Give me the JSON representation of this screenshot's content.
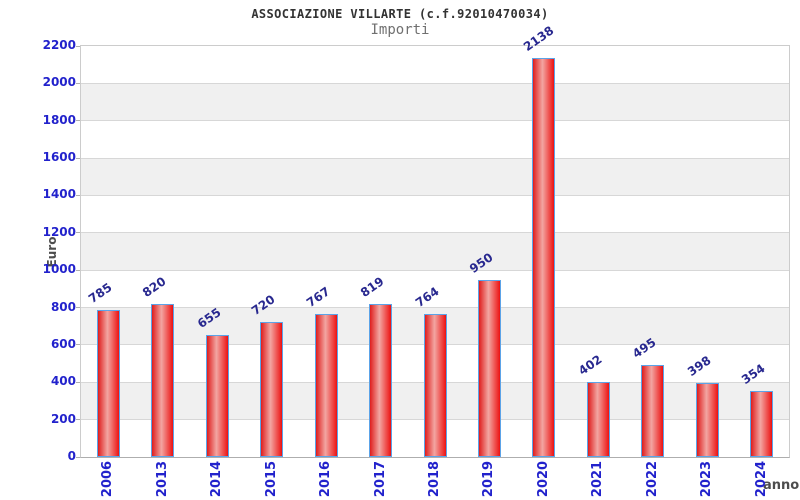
{
  "header": {
    "title": "ASSOCIAZIONE VILLARTE (c.f.92010470034)",
    "subtitle": "Importi"
  },
  "chart_data": {
    "type": "bar",
    "title": "ASSOCIAZIONE VILLARTE (c.f.92010470034)",
    "subtitle": "Importi",
    "xlabel": "anno",
    "ylabel": "Euro",
    "categories": [
      "2006",
      "2013",
      "2014",
      "2015",
      "2016",
      "2017",
      "2018",
      "2019",
      "2020",
      "2021",
      "2022",
      "2023",
      "2024"
    ],
    "values": [
      785,
      820,
      655,
      720,
      767,
      819,
      764,
      950,
      2138,
      402,
      495,
      398,
      354
    ],
    "ylim": [
      0,
      2200
    ],
    "ytick_step": 200,
    "grid": true,
    "legend": "none",
    "bar_labels_rotated": true,
    "colors": {
      "bar_fill_left": "#df1d1d",
      "bar_fill_mid": "#f2a6a2",
      "bar_fill_right": "#ec1212",
      "bar_border": "#5ba3e8",
      "value_label": "#28288f",
      "tick_label": "#2222cc",
      "axis_title": "#4d4d4d",
      "band_light": "#ffffff",
      "band_dark": "#f0f0f0",
      "grid_line": "#d7d7d7",
      "title": "#333333",
      "subtitle": "#707070"
    }
  }
}
